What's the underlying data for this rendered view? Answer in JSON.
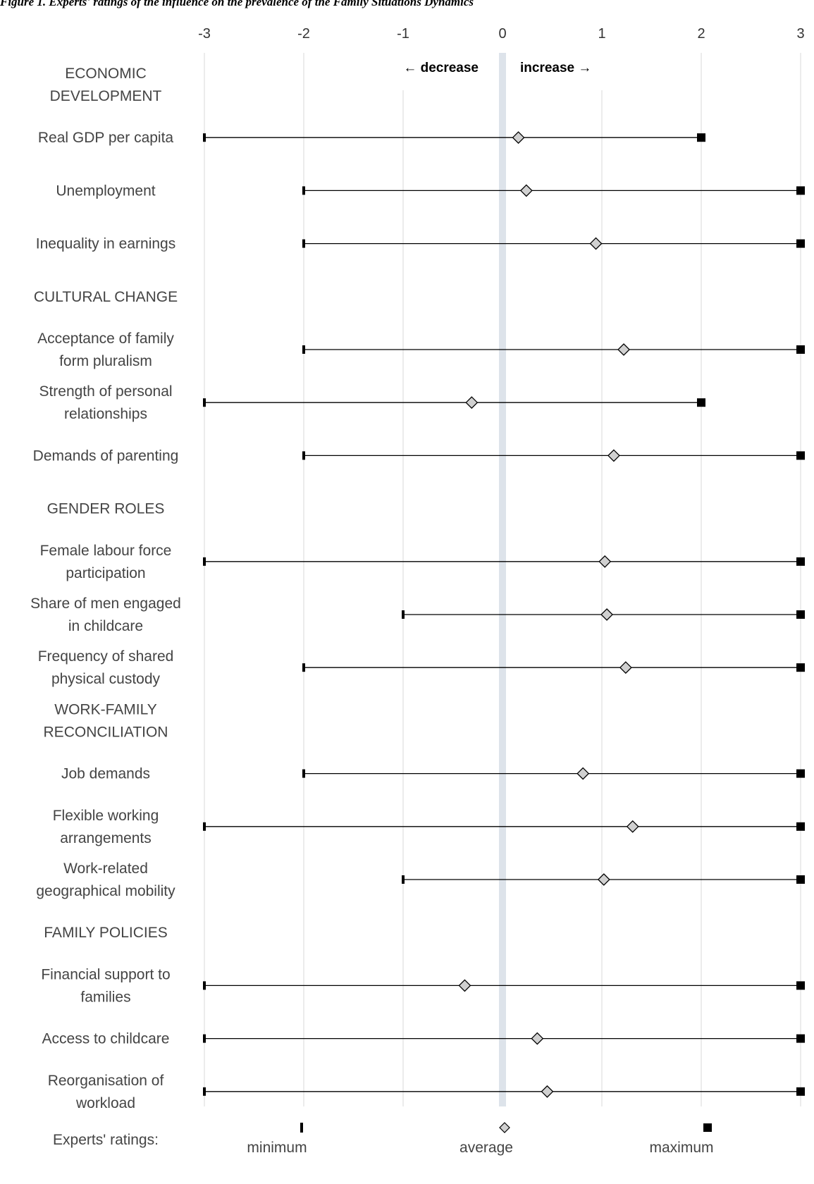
{
  "caption": "Figure 1. Experts' ratings of the influence on the prevalence of the Family Situations Dynamics",
  "chart_data": {
    "type": "dot-range",
    "xlim": [
      -3,
      3
    ],
    "ticks": [
      "-3",
      "-2",
      "-1",
      "0",
      "1",
      "2",
      "3"
    ],
    "direction_labels": {
      "left": "← decrease",
      "right": "increase →"
    },
    "rows": [
      {
        "kind": "header",
        "label": [
          "ECONOMIC",
          "DEVELOPMENT"
        ]
      },
      {
        "kind": "item",
        "label": [
          "Real GDP per capita"
        ],
        "min": -3,
        "avg": 0.16,
        "max": 2
      },
      {
        "kind": "item",
        "label": [
          "Unemployment"
        ],
        "min": -2,
        "avg": 0.24,
        "max": 3
      },
      {
        "kind": "item",
        "label": [
          "Inequality in earnings"
        ],
        "min": -2,
        "avg": 0.94,
        "max": 3
      },
      {
        "kind": "header",
        "label": [
          "CULTURAL CHANGE"
        ]
      },
      {
        "kind": "item",
        "label": [
          "Acceptance of family",
          "form pluralism"
        ],
        "min": -2,
        "avg": 1.22,
        "max": 3
      },
      {
        "kind": "item",
        "label": [
          "Strength of personal",
          "relationships"
        ],
        "min": -3,
        "avg": -0.31,
        "max": 2
      },
      {
        "kind": "item",
        "label": [
          "Demands of parenting"
        ],
        "min": -2,
        "avg": 1.12,
        "max": 3
      },
      {
        "kind": "header",
        "label": [
          "GENDER ROLES"
        ]
      },
      {
        "kind": "item",
        "label": [
          "Female labour force",
          "participation"
        ],
        "min": -3,
        "avg": 1.03,
        "max": 3
      },
      {
        "kind": "item",
        "label": [
          "Share of men engaged",
          "in childcare"
        ],
        "min": -1,
        "avg": 1.05,
        "max": 3
      },
      {
        "kind": "item",
        "label": [
          "Frequency of shared",
          "physical custody"
        ],
        "min": -2,
        "avg": 1.24,
        "max": 3
      },
      {
        "kind": "header",
        "label": [
          "WORK-FAMILY",
          "RECONCILIATION"
        ]
      },
      {
        "kind": "item",
        "label": [
          "Job demands"
        ],
        "min": -2,
        "avg": 0.81,
        "max": 3
      },
      {
        "kind": "item",
        "label": [
          "Flexible working",
          "arrangements"
        ],
        "min": -3,
        "avg": 1.31,
        "max": 3
      },
      {
        "kind": "item",
        "label": [
          "Work-related",
          "geographical mobility"
        ],
        "min": -1,
        "avg": 1.02,
        "max": 3
      },
      {
        "kind": "header",
        "label": [
          "FAMILY POLICIES"
        ]
      },
      {
        "kind": "item",
        "label": [
          "Financial support to",
          "families"
        ],
        "min": -3,
        "avg": -0.38,
        "max": 3
      },
      {
        "kind": "item",
        "label": [
          "Access to childcare"
        ],
        "min": -3,
        "avg": 0.35,
        "max": 3
      },
      {
        "kind": "item",
        "label": [
          "Reorganisation of",
          "workload"
        ],
        "min": -3,
        "avg": 0.45,
        "max": 3
      }
    ],
    "legend": {
      "title": "Experts' ratings:",
      "items": [
        {
          "label": "minimum",
          "marker": "tick"
        },
        {
          "label": "average",
          "marker": "diamond"
        },
        {
          "label": "maximum",
          "marker": "square"
        }
      ]
    },
    "colors": {
      "line": "#000000",
      "grid": "#d9d9d9",
      "zero_band": "#dde3ea",
      "diamond_fill": "#d0d0d0"
    }
  }
}
